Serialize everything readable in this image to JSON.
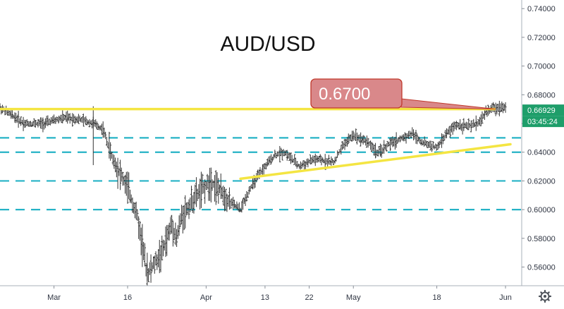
{
  "chart_data": {
    "type": "ohlc",
    "title": "AUD/USD",
    "price_axis": {
      "ticks": [
        "0.74000",
        "0.72000",
        "0.70000",
        "0.68000",
        "0.66000",
        "0.64000",
        "0.62000",
        "0.60000",
        "0.58000",
        "0.56000"
      ],
      "ylim": [
        0.547,
        0.746
      ]
    },
    "time_axis": {
      "ticks": [
        "Mar",
        "16",
        "Apr",
        "13",
        "22",
        "May",
        "18",
        "Jun"
      ]
    },
    "current_price": "0.66929",
    "countdown": "03:45:24",
    "annotation": {
      "label": "0.6700",
      "value": 0.67
    },
    "resistance_line": {
      "value": 0.67,
      "color": "#f4e542"
    },
    "support_trendline": {
      "from": {
        "date": "Apr 08",
        "value": 0.6215
      },
      "to": {
        "date": "Jun 02",
        "value": 0.6455
      },
      "color": "#f4e542"
    },
    "dashed_levels": [
      0.65,
      0.64,
      0.62,
      0.6
    ],
    "dashed_color": "#26b3c6",
    "bar_color": "#333333",
    "series": [
      {
        "price_path": [
          [
            "Feb 19",
            0.671
          ],
          [
            "Feb 24",
            0.66
          ],
          [
            "Feb 28",
            0.66
          ],
          [
            "Mar 03",
            0.664
          ],
          [
            "Mar 06",
            0.663
          ],
          [
            "Mar 09",
            0.66
          ],
          [
            "Mar 11",
            0.656
          ],
          [
            "Mar 13",
            0.635
          ],
          [
            "Mar 16",
            0.615
          ],
          [
            "Mar 17",
            0.605
          ],
          [
            "Mar 18",
            0.595
          ],
          [
            "Mar 19",
            0.575
          ],
          [
            "Mar 20",
            0.555
          ],
          [
            "Mar 23",
            0.57
          ],
          [
            "Mar 24",
            0.58
          ],
          [
            "Mar 25",
            0.59
          ],
          [
            "Mar 26",
            0.58
          ],
          [
            "Mar 27",
            0.595
          ],
          [
            "Mar 30",
            0.61
          ],
          [
            "Apr 02",
            0.62
          ],
          [
            "Apr 06",
            0.605
          ],
          [
            "Apr 08",
            0.6
          ],
          [
            "Apr 10",
            0.615
          ],
          [
            "Apr 13",
            0.63
          ],
          [
            "Apr 15",
            0.638
          ],
          [
            "Apr 17",
            0.64
          ],
          [
            "Apr 20",
            0.63
          ],
          [
            "Apr 23",
            0.635
          ],
          [
            "Apr 27",
            0.633
          ],
          [
            "Apr 29",
            0.645
          ],
          [
            "May 01",
            0.652
          ],
          [
            "May 04",
            0.647
          ],
          [
            "May 06",
            0.639
          ],
          [
            "May 08",
            0.645
          ],
          [
            "May 11",
            0.65
          ],
          [
            "May 13",
            0.653
          ],
          [
            "May 15",
            0.647
          ],
          [
            "May 18",
            0.643
          ],
          [
            "May 20",
            0.653
          ],
          [
            "May 22",
            0.659
          ],
          [
            "May 25",
            0.658
          ],
          [
            "May 27",
            0.662
          ],
          [
            "May 28",
            0.668
          ],
          [
            "May 29",
            0.67
          ],
          [
            "Jun 01",
            0.672
          ]
        ]
      }
    ]
  }
}
